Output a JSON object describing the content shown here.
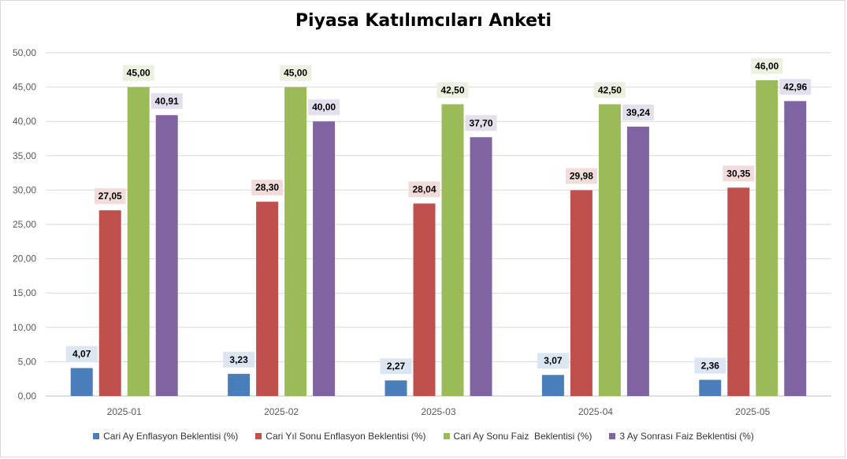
{
  "chart_data": {
    "type": "bar",
    "title": "Piyasa Katılımcıları Anketi",
    "xlabel": "",
    "ylabel": "",
    "categories": [
      "2025-01",
      "2025-02",
      "2025-03",
      "2025-04",
      "2025-05"
    ],
    "ylim": [
      0,
      50
    ],
    "yticks": [
      "0,00",
      "5,00",
      "10,00",
      "15,00",
      "20,00",
      "25,00",
      "30,00",
      "35,00",
      "40,00",
      "45,00",
      "50,00"
    ],
    "grid": true,
    "legend_position": "bottom",
    "series": [
      {
        "name": "Cari Ay Enflasyon Beklentisi (%)",
        "color": "#4a7ebb",
        "label_bg": "#dce6f2",
        "values": [
          4.07,
          3.23,
          2.27,
          3.07,
          2.36
        ],
        "labels": [
          "4,07",
          "3,23",
          "2,27",
          "3,07",
          "2,36"
        ]
      },
      {
        "name": "Cari Yıl Sonu Enflasyon Beklentisi (%)",
        "color": "#c0504d",
        "label_bg": "#f2dcdb",
        "values": [
          27.05,
          28.3,
          28.04,
          29.98,
          30.35
        ],
        "labels": [
          "27,05",
          "28,30",
          "28,04",
          "29,98",
          "30,35"
        ]
      },
      {
        "name": "Cari Ay Sonu Faiz  Beklentisi (%)",
        "color": "#9bbb59",
        "label_bg": "#ebf1de",
        "values": [
          45.0,
          45.0,
          42.5,
          42.5,
          46.0
        ],
        "labels": [
          "45,00",
          "45,00",
          "42,50",
          "42,50",
          "46,00"
        ]
      },
      {
        "name": "3 Ay Sonrası Faiz Beklentisi (%)",
        "color": "#8064a2",
        "label_bg": "#e4dfec",
        "values": [
          40.91,
          40.0,
          37.7,
          39.24,
          42.96
        ],
        "labels": [
          "40,91",
          "40,00",
          "37,70",
          "39,24",
          "42,96"
        ]
      }
    ]
  }
}
